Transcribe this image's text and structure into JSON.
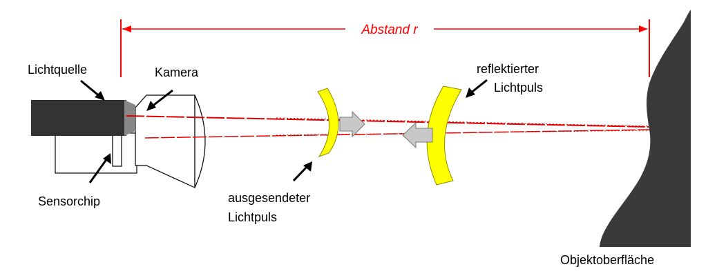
{
  "labels": {
    "distance": "Abstand r",
    "light_source": "Lichtquelle",
    "camera": "Kamera",
    "sensor_chip": "Sensorchip",
    "emitted_pulse_line1": "ausgesendeter",
    "emitted_pulse_line2": "Lichtpuls",
    "reflected_pulse_line1": "reflektierter",
    "reflected_pulse_line2": "Lichtpuls",
    "object_surface": "Objektoberfläche"
  },
  "colors": {
    "distance_accent": "#ff0000",
    "light_ray": "#e00000",
    "pulse_fill": "#ffff00",
    "pulse_stroke": "#8c8c00",
    "arrow_fill": "#c8c8c8",
    "object_fill": "#3a3a3a",
    "light_source_fill": "#333333"
  }
}
